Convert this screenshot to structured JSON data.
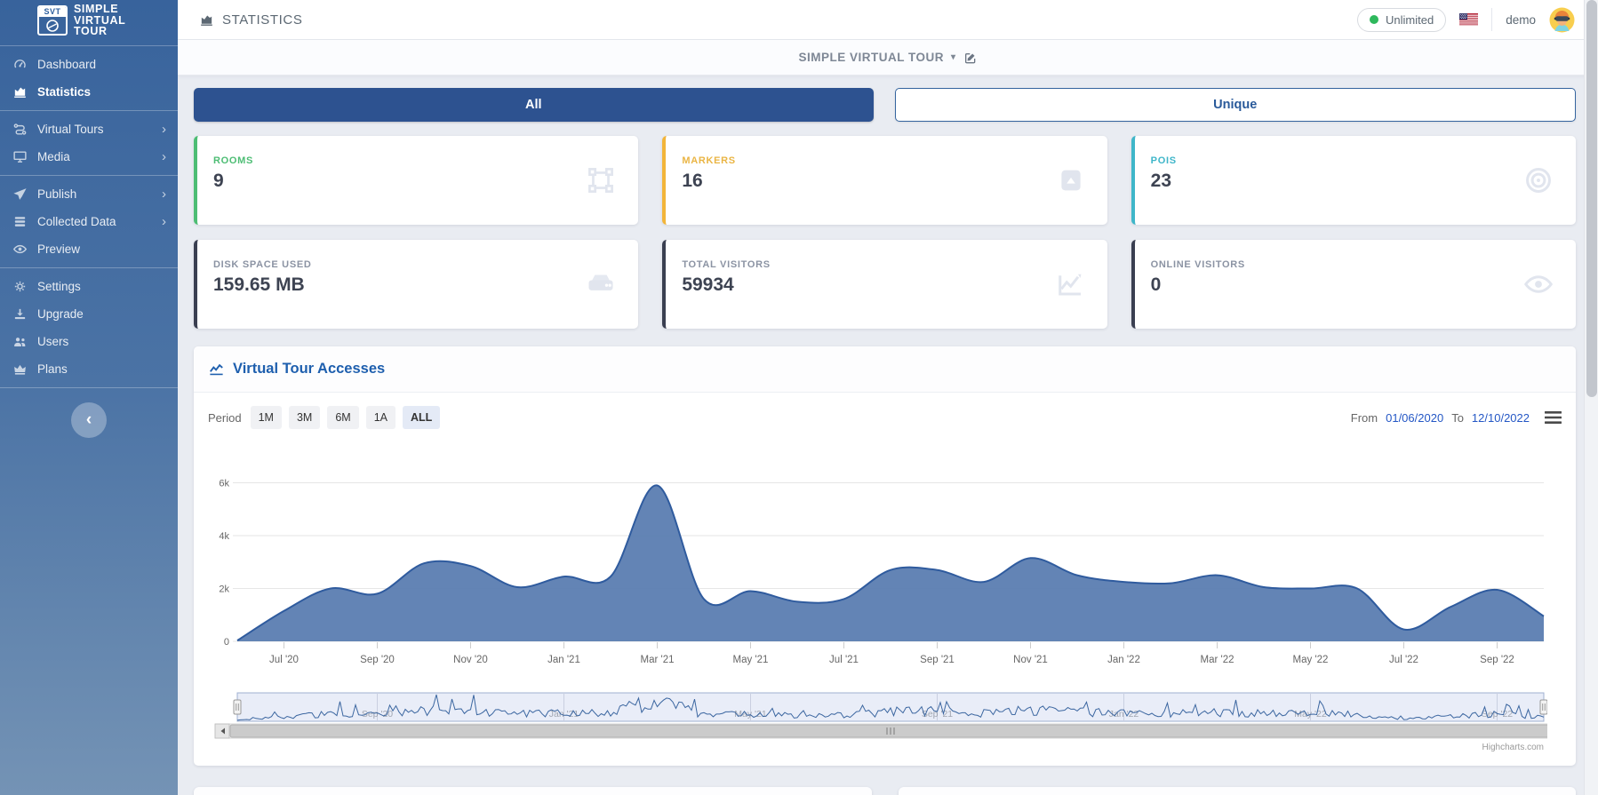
{
  "sidebar": {
    "logo": {
      "badge": "SVT",
      "line1": "SIMPLE",
      "line2": "VIRTUAL",
      "line3": "TOUR"
    },
    "items": [
      {
        "label": "Dashboard",
        "icon": "gauge-icon",
        "active": false,
        "submenu": false
      },
      {
        "label": "Statistics",
        "icon": "chart-area-icon",
        "active": true,
        "submenu": false
      },
      {
        "label": "Virtual Tours",
        "icon": "route-icon",
        "active": false,
        "submenu": true
      },
      {
        "label": "Media",
        "icon": "desktop-icon",
        "active": false,
        "submenu": true
      },
      {
        "label": "Publish",
        "icon": "paper-plane-icon",
        "active": false,
        "submenu": true
      },
      {
        "label": "Collected Data",
        "icon": "database-icon",
        "active": false,
        "submenu": true
      },
      {
        "label": "Preview",
        "icon": "eye-icon",
        "active": false,
        "submenu": false
      },
      {
        "label": "Settings",
        "icon": "gear-icon",
        "active": false,
        "submenu": false
      },
      {
        "label": "Upgrade",
        "icon": "download-icon",
        "active": false,
        "submenu": false
      },
      {
        "label": "Users",
        "icon": "users-icon",
        "active": false,
        "submenu": false
      },
      {
        "label": "Plans",
        "icon": "crown-icon",
        "active": false,
        "submenu": false
      }
    ],
    "submenu_arrow": "›",
    "collapse_arrow": "‹"
  },
  "header": {
    "title": "STATISTICS",
    "plan_badge": "Unlimited",
    "username": "demo"
  },
  "tour_selector": {
    "label": "SIMPLE VIRTUAL TOUR",
    "caret": "▾"
  },
  "mode_toggle": {
    "all": "All",
    "unique": "Unique"
  },
  "stat_cards": [
    {
      "label": "ROOMS",
      "value": "9",
      "accent": "#4dbd74",
      "label_color": "#4dbd74",
      "icon": "vector-square-icon"
    },
    {
      "label": "MARKERS",
      "value": "16",
      "accent": "#f2b53a",
      "label_color": "#eab544",
      "icon": "image-marker-icon"
    },
    {
      "label": "POIS",
      "value": "23",
      "accent": "#3fb6c9",
      "label_color": "#3fb6c9",
      "icon": "bullseye-icon"
    },
    {
      "label": "DISK SPACE USED",
      "value": "159.65 MB",
      "accent": "#3a3f51",
      "label_color": "#8b93a3",
      "icon": "hdd-icon"
    },
    {
      "label": "TOTAL VISITORS",
      "value": "59934",
      "accent": "#3a3f51",
      "label_color": "#8b93a3",
      "icon": "chart-line-icon"
    },
    {
      "label": "ONLINE VISITORS",
      "value": "0",
      "accent": "#3a3f51",
      "label_color": "#8b93a3",
      "icon": "eye-icon"
    }
  ],
  "chart_panel": {
    "title": "Virtual Tour Accesses",
    "period_label": "Period",
    "period_buttons": [
      "1M",
      "3M",
      "6M",
      "1A",
      "ALL"
    ],
    "active_period": "ALL",
    "from_label": "From",
    "from_date": "01/06/2020",
    "to_label": "To",
    "to_date": "12/10/2022",
    "credit": "Highcharts.com"
  },
  "chart_data": {
    "type": "area",
    "title": "Virtual Tour Accesses",
    "x": [
      "Jun '20",
      "Jul '20",
      "Aug '20",
      "Sep '20",
      "Oct '20",
      "Nov '20",
      "Dec '20",
      "Jan '21",
      "Feb '21",
      "Mar '21",
      "Apr '21",
      "May '21",
      "Jun '21",
      "Jul '21",
      "Aug '21",
      "Sep '21",
      "Oct '21",
      "Nov '21",
      "Dec '21",
      "Jan '22",
      "Feb '22",
      "Mar '22",
      "Apr '22",
      "May '22",
      "Jun '22",
      "Jul '22",
      "Aug '22",
      "Sep '22",
      "Oct '22"
    ],
    "values": [
      30,
      1150,
      2000,
      1800,
      2950,
      2850,
      2050,
      2450,
      2450,
      5900,
      1600,
      1900,
      1500,
      1600,
      2700,
      2700,
      2250,
      3150,
      2500,
      2250,
      2200,
      2500,
      2050,
      2000,
      2000,
      450,
      1300,
      1950,
      950
    ],
    "xtick_labels": [
      "Jul '20",
      "Sep '20",
      "Nov '20",
      "Jan '21",
      "Mar '21",
      "May '21",
      "Jul '21",
      "Sep '21",
      "Nov '21",
      "Jan '22",
      "Mar '22",
      "May '22",
      "Jul '22",
      "Sep '22"
    ],
    "xtick_month_indices": [
      1,
      3,
      5,
      7,
      9,
      11,
      13,
      15,
      17,
      19,
      21,
      23,
      25,
      27
    ],
    "ytick_labels": [
      "0",
      "2k",
      "4k",
      "6k"
    ],
    "ytick_values": [
      0,
      2000,
      4000,
      6000
    ],
    "ylim": [
      0,
      6500
    ],
    "grid": "horizontal",
    "legend": "none",
    "series_fill": "#5b7db1",
    "series_stroke": "#2f5b9e",
    "navigator_labels": [
      "Sep '20",
      "Jan '21",
      "May '21",
      "Sep '21",
      "Jan '22",
      "May '22",
      "Sep '22"
    ],
    "navigator_label_month_indices": [
      3,
      7,
      11,
      15,
      19,
      23,
      27
    ],
    "navigator_bg": "#e9edf8",
    "navigator_line": "#3b66a0"
  }
}
